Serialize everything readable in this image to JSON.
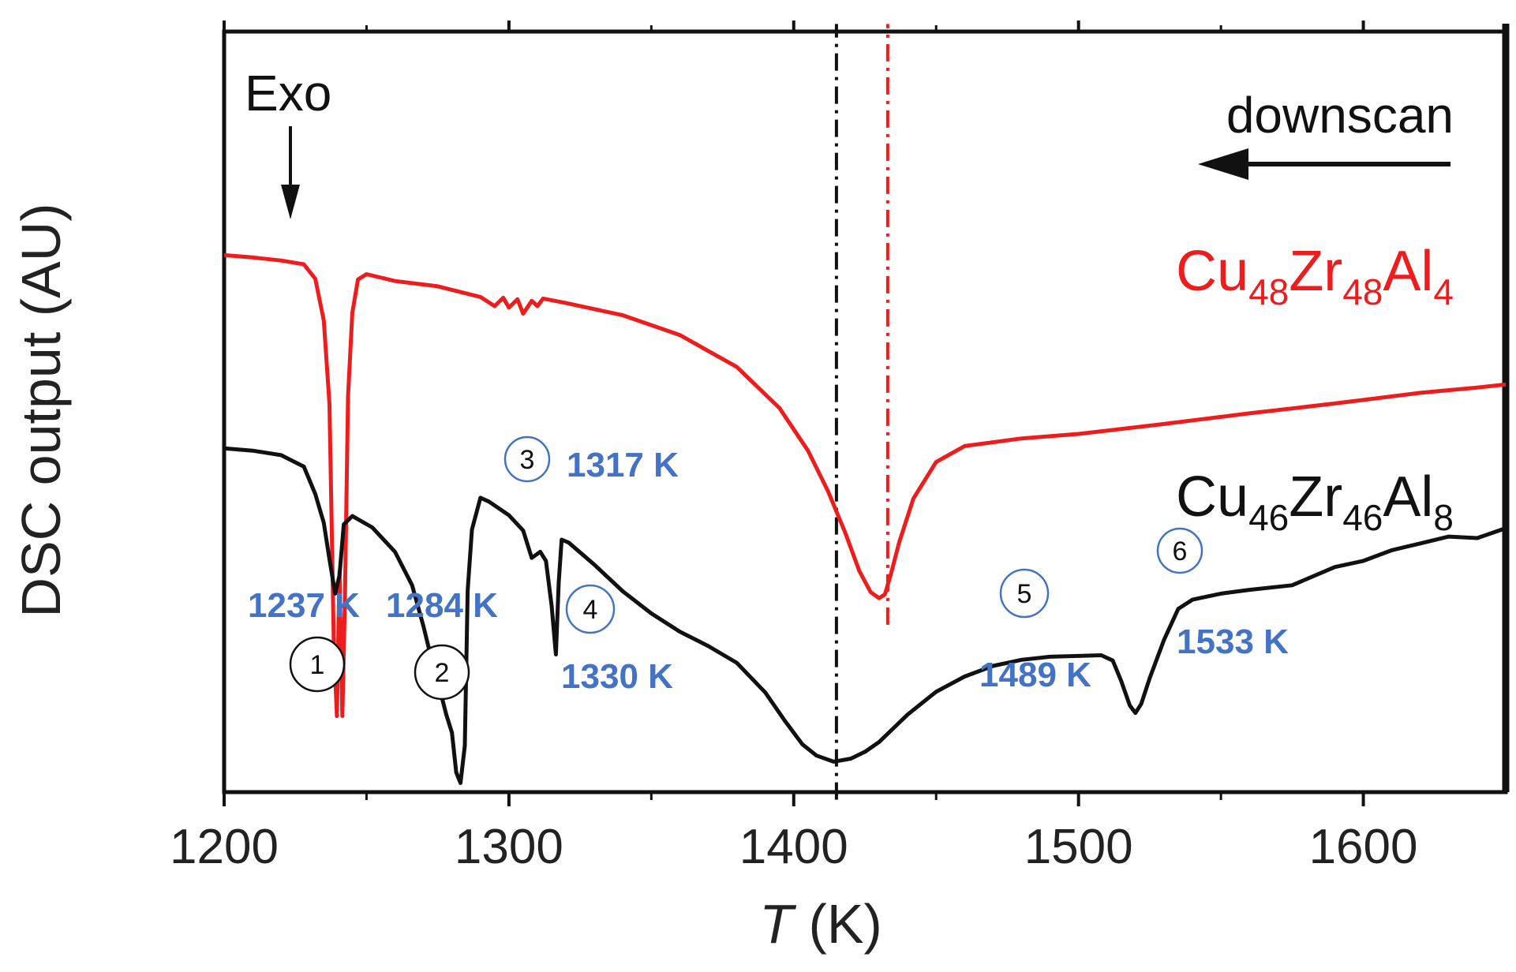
{
  "chart_data": {
    "type": "line",
    "title": "",
    "xlabel_italic": "T",
    "xlabel_unit": " (K)",
    "ylabel": "DSC output (AU)",
    "xlim": [
      1200,
      1650
    ],
    "ylim": [
      0,
      100
    ],
    "x_ticks": [
      1200,
      1300,
      1400,
      1500,
      1600
    ],
    "y_ticks_labeled": false,
    "annotations": {
      "exo": "Exo",
      "downscan": "downscan"
    },
    "series": [
      {
        "name": "Cu48Zr48Al4",
        "label_parts": [
          {
            "t": "Cu",
            "sub": false
          },
          {
            "t": "48",
            "sub": true
          },
          {
            "t": "Zr",
            "sub": false
          },
          {
            "t": "48",
            "sub": true
          },
          {
            "t": "Al",
            "sub": false
          },
          {
            "t": "4",
            "sub": true
          }
        ],
        "color": "#ee1c1c",
        "points": [
          [
            1200,
            70.6
          ],
          [
            1210,
            70.3
          ],
          [
            1220,
            69.9
          ],
          [
            1228,
            69.4
          ],
          [
            1232,
            67.5
          ],
          [
            1235,
            62
          ],
          [
            1237,
            51
          ],
          [
            1238.5,
            20
          ],
          [
            1239.6,
            10
          ],
          [
            1240.5,
            29
          ],
          [
            1241.5,
            10
          ],
          [
            1242.4,
            25
          ],
          [
            1243.5,
            52
          ],
          [
            1245,
            63
          ],
          [
            1247,
            67.4
          ],
          [
            1250,
            68.1
          ],
          [
            1260,
            67.2
          ],
          [
            1275,
            66.5
          ],
          [
            1290,
            65.1
          ],
          [
            1295,
            63.9
          ],
          [
            1298,
            65
          ],
          [
            1300,
            63.7
          ],
          [
            1303,
            64.8
          ],
          [
            1305,
            62.9
          ],
          [
            1308,
            64.6
          ],
          [
            1310,
            63.9
          ],
          [
            1312,
            64.9
          ],
          [
            1320,
            64.3
          ],
          [
            1340,
            62.7
          ],
          [
            1360,
            60.1
          ],
          [
            1380,
            55.9
          ],
          [
            1395,
            50.5
          ],
          [
            1405,
            44.9
          ],
          [
            1412,
            39.6
          ],
          [
            1418,
            34.2
          ],
          [
            1423,
            29.1
          ],
          [
            1427,
            26.3
          ],
          [
            1430,
            25.5
          ],
          [
            1432,
            26
          ],
          [
            1434,
            28.5
          ],
          [
            1437,
            32.8
          ],
          [
            1442,
            38.6
          ],
          [
            1450,
            43.4
          ],
          [
            1460,
            45.5
          ],
          [
            1480,
            46.5
          ],
          [
            1500,
            47.1
          ],
          [
            1530,
            48.4
          ],
          [
            1560,
            49.8
          ],
          [
            1590,
            51.1
          ],
          [
            1620,
            52.5
          ],
          [
            1640,
            53.2
          ],
          [
            1650,
            53.6
          ]
        ]
      },
      {
        "name": "Cu46Zr46Al8",
        "label_parts": [
          {
            "t": "Cu",
            "sub": false
          },
          {
            "t": "46",
            "sub": true
          },
          {
            "t": "Zr",
            "sub": false
          },
          {
            "t": "46",
            "sub": true
          },
          {
            "t": "Al",
            "sub": false
          },
          {
            "t": "8",
            "sub": true
          }
        ],
        "color": "#111111",
        "points": [
          [
            1200,
            45.2
          ],
          [
            1210,
            44.9
          ],
          [
            1220,
            44.3
          ],
          [
            1228,
            42.8
          ],
          [
            1232,
            39.2
          ],
          [
            1235,
            35.4
          ],
          [
            1237,
            30.6
          ],
          [
            1239,
            26.1
          ],
          [
            1240.5,
            28.5
          ],
          [
            1242,
            35.2
          ],
          [
            1245,
            36.3
          ],
          [
            1252,
            34.8
          ],
          [
            1260,
            31.6
          ],
          [
            1266,
            27.2
          ],
          [
            1270,
            21.8
          ],
          [
            1273,
            17.2
          ],
          [
            1276,
            13.1
          ],
          [
            1278,
            10.2
          ],
          [
            1280,
            7.8
          ],
          [
            1281.5,
            2.6
          ],
          [
            1283,
            1.2
          ],
          [
            1284.5,
            6.1
          ],
          [
            1285.5,
            26.5
          ],
          [
            1287,
            34.5
          ],
          [
            1290,
            38.7
          ],
          [
            1293,
            38.2
          ],
          [
            1300,
            36.4
          ],
          [
            1305,
            34.4
          ],
          [
            1308,
            30.8
          ],
          [
            1311,
            31.6
          ],
          [
            1313,
            30.4
          ],
          [
            1315,
            24.5
          ],
          [
            1316.5,
            18.1
          ],
          [
            1317.5,
            27.6
          ],
          [
            1318.5,
            33.2
          ],
          [
            1321,
            32.8
          ],
          [
            1330,
            29.9
          ],
          [
            1340,
            26.4
          ],
          [
            1350,
            23.5
          ],
          [
            1360,
            21.1
          ],
          [
            1370,
            19.2
          ],
          [
            1380,
            17
          ],
          [
            1390,
            13.1
          ],
          [
            1397,
            9.3
          ],
          [
            1403,
            6.3
          ],
          [
            1408,
            4.8
          ],
          [
            1414,
            4
          ],
          [
            1420,
            4.4
          ],
          [
            1425,
            5.3
          ],
          [
            1430,
            6.6
          ],
          [
            1440,
            10.2
          ],
          [
            1450,
            13.2
          ],
          [
            1460,
            15.2
          ],
          [
            1470,
            16.6
          ],
          [
            1480,
            17.4
          ],
          [
            1490,
            17.8
          ],
          [
            1500,
            17.9
          ],
          [
            1508,
            18
          ],
          [
            1512,
            17.3
          ],
          [
            1515,
            14.6
          ],
          [
            1518,
            11.4
          ],
          [
            1520,
            10.4
          ],
          [
            1522,
            11.6
          ],
          [
            1525,
            15
          ],
          [
            1530,
            20
          ],
          [
            1535,
            24.1
          ],
          [
            1540,
            25.3
          ],
          [
            1550,
            26.1
          ],
          [
            1560,
            26.6
          ],
          [
            1575,
            27.2
          ],
          [
            1590,
            29.6
          ],
          [
            1600,
            30.4
          ],
          [
            1610,
            31.8
          ],
          [
            1620,
            32.7
          ],
          [
            1630,
            33.6
          ],
          [
            1640,
            33.4
          ],
          [
            1650,
            34.7
          ]
        ]
      }
    ],
    "vertical_lines": [
      {
        "x": 1415,
        "color": "#111111",
        "y_from": -1,
        "y_to": 101
      },
      {
        "x": 1433,
        "color": "#ee1c1c",
        "y_from": 22,
        "y_to": 101
      }
    ],
    "peak_labels": [
      {
        "num": "1",
        "temp": "1237 K",
        "num_ring": "#111111"
      },
      {
        "num": "2",
        "temp": "1284 K",
        "num_ring": "#111111"
      },
      {
        "num": "3",
        "temp": "1317 K",
        "num_ring": "#4472c4"
      },
      {
        "num": "4",
        "temp": "1330 K",
        "num_ring": "#4472c4"
      },
      {
        "num": "5",
        "temp": "1489 K",
        "num_ring": "#4472c4"
      },
      {
        "num": "6",
        "temp": "1533 K",
        "num_ring": "#4472c4"
      }
    ]
  }
}
